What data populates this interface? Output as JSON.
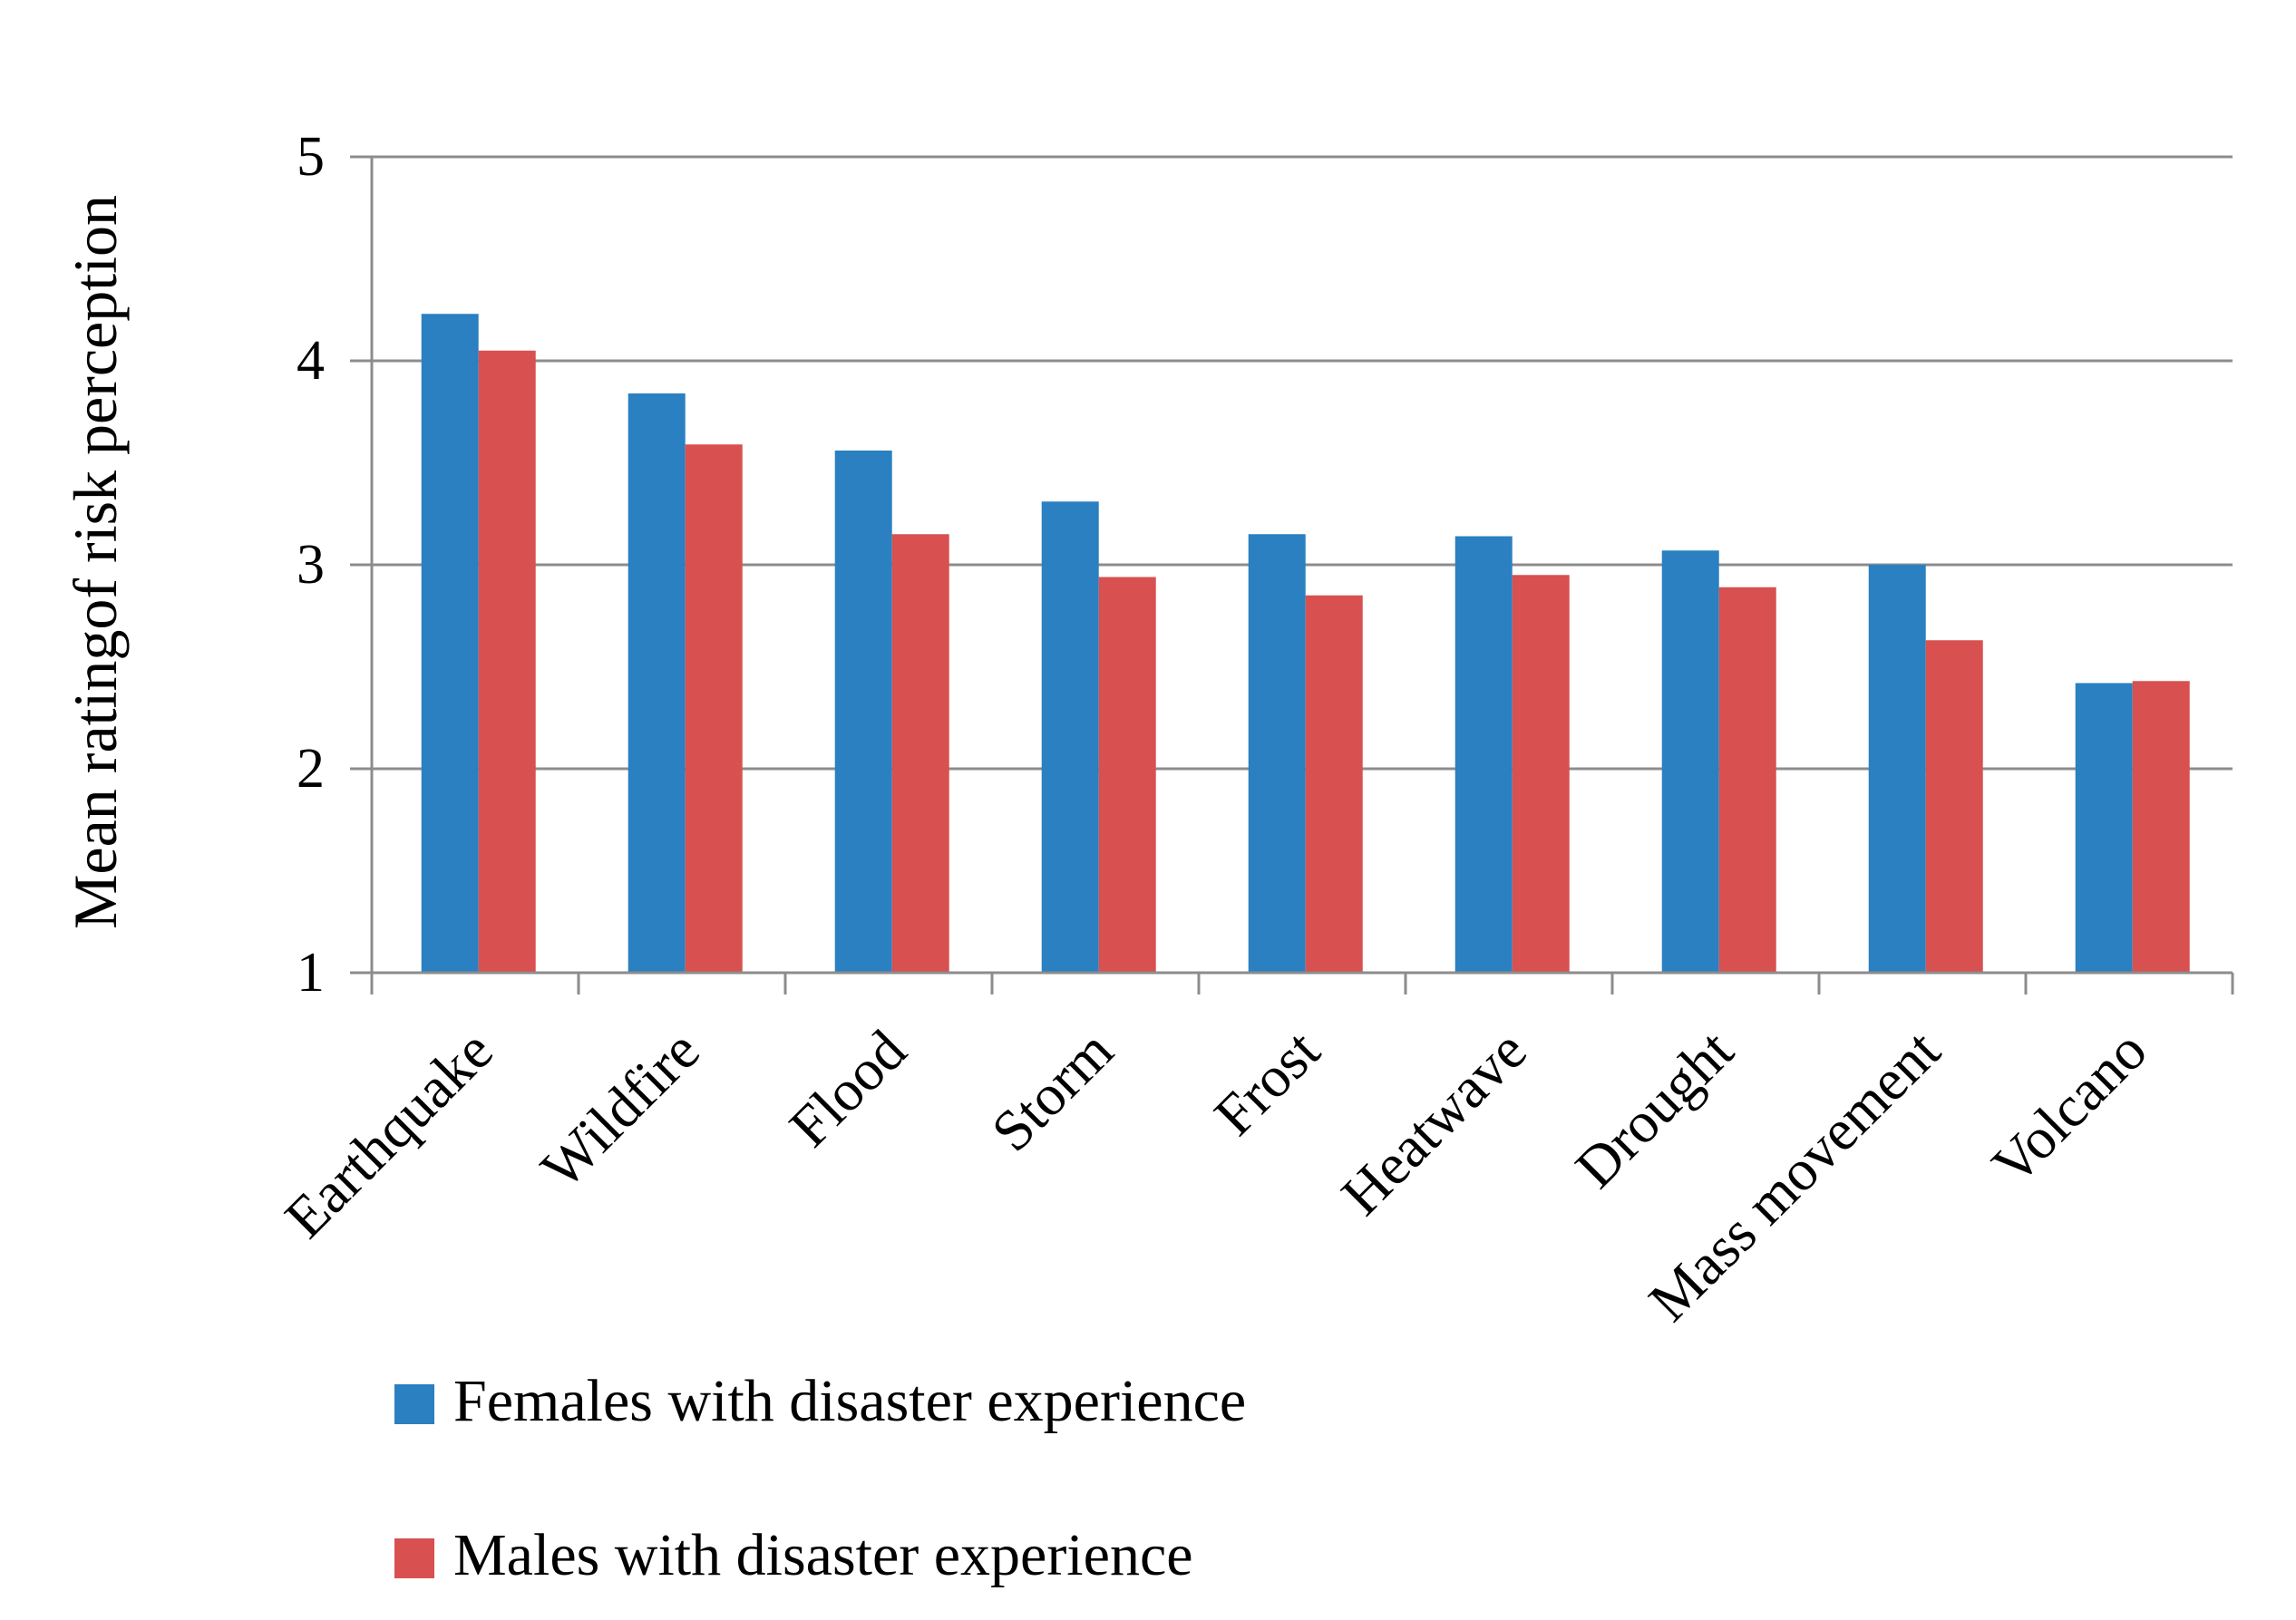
{
  "chart_data": {
    "type": "bar",
    "title": "",
    "xlabel": "",
    "ylabel": "Mean ratingof risk perception",
    "ylim": [
      1,
      5
    ],
    "yticks": [
      1,
      2,
      3,
      4,
      5
    ],
    "grid": true,
    "legend_position": "bottom-left",
    "categories": [
      "Earthquake",
      "Wildfire",
      "Flood",
      "Storm",
      "Frost",
      "Heatwave",
      "Drought",
      "Mass movement",
      "Volcano"
    ],
    "series": [
      {
        "name": "Females with disaster experience",
        "color": "#2a80c0",
        "values": [
          4.23,
          3.84,
          3.56,
          3.31,
          3.15,
          3.14,
          3.07,
          3.0,
          2.42
        ]
      },
      {
        "name": "Males with disaster experience",
        "color": "#d85050",
        "values": [
          4.05,
          3.59,
          3.15,
          2.94,
          2.85,
          2.95,
          2.89,
          2.63,
          2.43
        ]
      }
    ]
  }
}
